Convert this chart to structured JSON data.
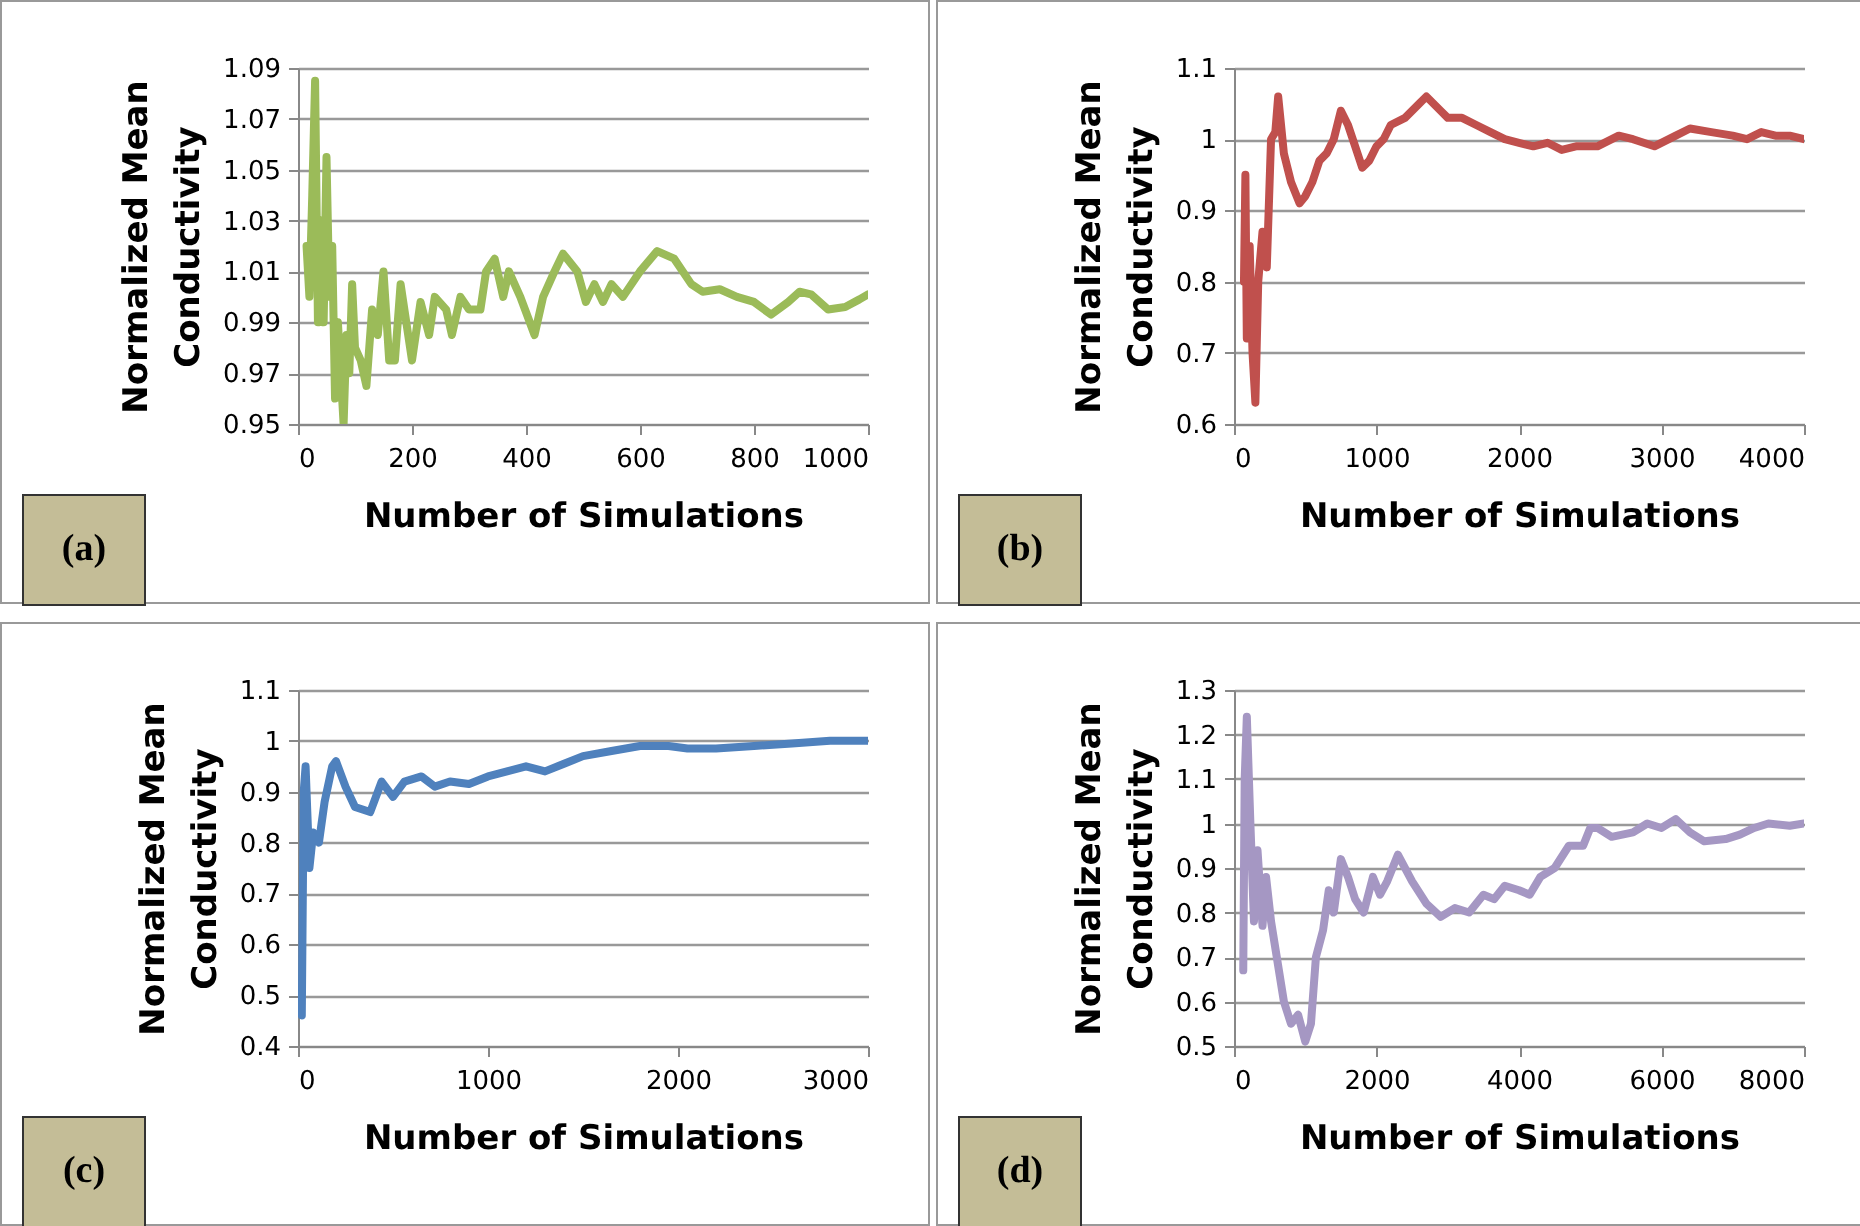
{
  "chart_data": [
    {
      "type": "line",
      "xlabel": "Number of Simulations",
      "ylabel": "Normalized Mean Conductivity",
      "annotations": [
        "(a)"
      ],
      "grid": "y",
      "legend": false,
      "marker": "none",
      "line_style": "solid",
      "xlim": [
        0,
        1000
      ],
      "xticks": [
        0,
        200,
        400,
        600,
        800,
        1000
      ],
      "ylim": [
        0.95,
        1.09
      ],
      "yticks": [
        0.95,
        0.97,
        0.99,
        1.01,
        1.03,
        1.05,
        1.07,
        1.09
      ],
      "series": [
        {
          "color": "#9bbb59",
          "x": [
            15,
            20,
            25,
            30,
            35,
            40,
            45,
            50,
            55,
            60,
            65,
            70,
            80,
            85,
            90,
            95,
            100,
            110,
            120,
            130,
            140,
            150,
            160,
            170,
            180,
            190,
            200,
            215,
            230,
            240,
            260,
            270,
            285,
            300,
            320,
            330,
            345,
            360,
            370,
            390,
            415,
            430,
            450,
            465,
            490,
            505,
            520,
            535,
            550,
            570,
            600,
            630,
            660,
            690,
            710,
            740,
            770,
            800,
            830,
            860,
            880,
            900,
            930,
            960,
            985,
            1000
          ],
          "values": [
            1.02,
            1.0,
            1.04,
            1.085,
            0.99,
            1.03,
            0.99,
            1.055,
            1.0,
            1.02,
            0.96,
            0.99,
            0.95,
            0.985,
            0.97,
            1.005,
            0.98,
            0.975,
            0.965,
            0.995,
            0.985,
            1.01,
            0.975,
            0.975,
            1.005,
            0.99,
            0.975,
            0.998,
            0.985,
            1.0,
            0.995,
            0.985,
            1.0,
            0.995,
            0.995,
            1.01,
            1.015,
            1.0,
            1.01,
            1.0,
            0.985,
            1.0,
            1.01,
            1.017,
            1.01,
            0.998,
            1.005,
            0.998,
            1.005,
            1.0,
            1.01,
            1.018,
            1.015,
            1.005,
            1.002,
            1.003,
            1.0,
            0.998,
            0.993,
            0.998,
            1.002,
            1.001,
            0.995,
            0.996,
            0.999,
            1.001
          ]
        }
      ]
    },
    {
      "type": "line",
      "xlabel": "Number of Simulations",
      "ylabel": "Normalized Mean Conductivity",
      "annotations": [
        "(b)"
      ],
      "grid": "y",
      "legend": false,
      "marker": "none",
      "line_style": "solid",
      "xlim": [
        0,
        4000
      ],
      "xticks": [
        0,
        1000,
        2000,
        3000,
        4000
      ],
      "ylim": [
        0.6,
        1.1
      ],
      "yticks": [
        0.6,
        0.7,
        0.8,
        0.9,
        1,
        1.1
      ],
      "series": [
        {
          "color": "#c0504d",
          "x": [
            70,
            80,
            90,
            110,
            130,
            150,
            170,
            200,
            230,
            260,
            290,
            310,
            350,
            400,
            460,
            500,
            550,
            600,
            650,
            700,
            750,
            800,
            850,
            900,
            950,
            1000,
            1050,
            1100,
            1200,
            1300,
            1350,
            1450,
            1500,
            1600,
            1700,
            1800,
            1900,
            2000,
            2100,
            2200,
            2300,
            2400,
            2550,
            2700,
            2800,
            2950,
            3100,
            3200,
            3350,
            3500,
            3600,
            3700,
            3800,
            3900,
            4000
          ],
          "values": [
            0.8,
            0.95,
            0.72,
            0.85,
            0.7,
            0.63,
            0.8,
            0.87,
            0.82,
            1.0,
            1.01,
            1.06,
            0.98,
            0.94,
            0.91,
            0.92,
            0.94,
            0.97,
            0.98,
            1.0,
            1.04,
            1.02,
            0.99,
            0.96,
            0.97,
            0.99,
            1.0,
            1.02,
            1.03,
            1.05,
            1.06,
            1.04,
            1.03,
            1.03,
            1.02,
            1.01,
            1.0,
            0.995,
            0.99,
            0.995,
            0.985,
            0.99,
            0.99,
            1.005,
            1.0,
            0.99,
            1.005,
            1.015,
            1.01,
            1.005,
            1.0,
            1.01,
            1.005,
            1.005,
            1.0
          ]
        }
      ]
    },
    {
      "type": "line",
      "xlabel": "Number of Simulations",
      "ylabel": "Normalized Mean Conductivity",
      "annotations": [
        "(c)"
      ],
      "grid": "y",
      "legend": false,
      "marker": "none",
      "line_style": "solid",
      "xlim": [
        0,
        3000
      ],
      "xticks": [
        0,
        1000,
        2000,
        3000
      ],
      "ylim": [
        0.4,
        1.1
      ],
      "yticks": [
        0.4,
        0.5,
        0.6,
        0.7,
        0.8,
        0.9,
        1,
        1.1
      ],
      "series": [
        {
          "color": "#4f81bd",
          "x": [
            20,
            30,
            40,
            60,
            80,
            110,
            140,
            180,
            200,
            250,
            300,
            380,
            440,
            500,
            560,
            650,
            720,
            800,
            900,
            1000,
            1100,
            1200,
            1300,
            1400,
            1500,
            1650,
            1800,
            1950,
            2050,
            2200,
            2400,
            2600,
            2800,
            3000
          ],
          "values": [
            0.46,
            0.9,
            0.95,
            0.75,
            0.82,
            0.8,
            0.88,
            0.95,
            0.96,
            0.91,
            0.87,
            0.86,
            0.92,
            0.89,
            0.92,
            0.93,
            0.91,
            0.92,
            0.915,
            0.93,
            0.94,
            0.95,
            0.94,
            0.955,
            0.97,
            0.98,
            0.99,
            0.99,
            0.985,
            0.985,
            0.99,
            0.995,
            1.0,
            1.0
          ]
        }
      ]
    },
    {
      "type": "line",
      "xlabel": "Number of Simulations",
      "ylabel": "Normalized Mean Conductivity",
      "annotations": [
        "(d)"
      ],
      "grid": "y",
      "legend": false,
      "marker": "none",
      "line_style": "solid",
      "xlim": [
        0,
        8000
      ],
      "xticks": [
        0,
        2000,
        4000,
        6000,
        8000
      ],
      "ylim": [
        0.5,
        1.3
      ],
      "yticks": [
        0.5,
        0.6,
        0.7,
        0.8,
        0.9,
        1,
        1.1,
        1.2,
        1.3
      ],
      "series": [
        {
          "color": "#a597c3",
          "x": [
            130,
            150,
            180,
            230,
            280,
            330,
            400,
            450,
            520,
            600,
            700,
            800,
            900,
            1000,
            1080,
            1150,
            1250,
            1330,
            1400,
            1500,
            1600,
            1700,
            1820,
            1950,
            2050,
            2150,
            2300,
            2500,
            2700,
            2900,
            3100,
            3300,
            3500,
            3650,
            3800,
            4000,
            4150,
            4300,
            4500,
            4700,
            4900,
            5000,
            5100,
            5300,
            5600,
            5800,
            6000,
            6200,
            6400,
            6600,
            6900,
            7100,
            7300,
            7500,
            7800,
            8000
          ],
          "values": [
            0.67,
            1.1,
            1.24,
            1.0,
            0.78,
            0.94,
            0.77,
            0.88,
            0.78,
            0.7,
            0.6,
            0.55,
            0.57,
            0.51,
            0.55,
            0.7,
            0.76,
            0.85,
            0.8,
            0.92,
            0.88,
            0.83,
            0.8,
            0.88,
            0.84,
            0.87,
            0.93,
            0.87,
            0.82,
            0.79,
            0.81,
            0.8,
            0.84,
            0.83,
            0.86,
            0.85,
            0.84,
            0.88,
            0.9,
            0.95,
            0.95,
            0.99,
            0.99,
            0.97,
            0.98,
            1.0,
            0.99,
            1.01,
            0.98,
            0.96,
            0.965,
            0.975,
            0.99,
            1.0,
            0.995,
            1.0
          ]
        }
      ]
    }
  ]
}
